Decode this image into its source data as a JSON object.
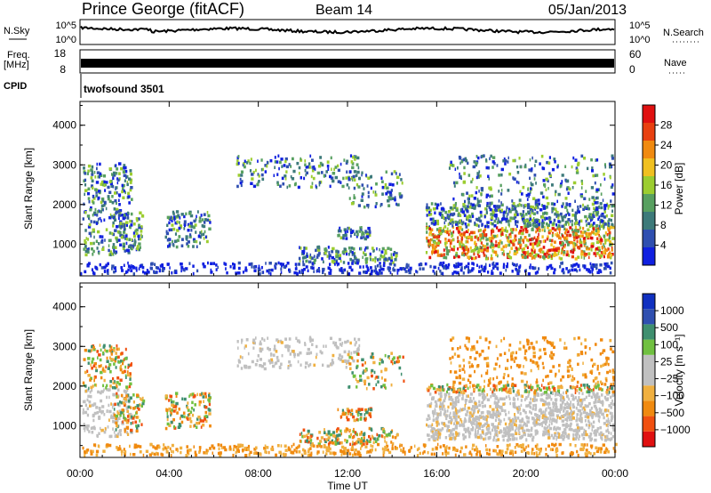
{
  "header": {
    "station": "Prince George (fitACF)",
    "beam": "Beam 14",
    "date": "05/Jan/2013"
  },
  "status_panels": {
    "nsky": {
      "label": "N.Sky",
      "tick_top": "10^5",
      "tick_bottom": "10^0"
    },
    "nsearch": {
      "label": "N.Search",
      "tick_top": "10^5",
      "tick_bottom": "10^0",
      "line_style": "dotted"
    },
    "freq": {
      "label_line1": "Freq.",
      "label_line2": "[MHz]",
      "tick_top": "18",
      "tick_bottom": "8",
      "line_style": "solid"
    },
    "nave": {
      "label": "Nave",
      "tick_top": "60",
      "tick_bottom": "0",
      "line_style": "dotted"
    },
    "cpid": {
      "label": "CPID",
      "value": "twofsound 3501"
    }
  },
  "colors": {
    "power_scale": [
      "#1020e0",
      "#2f4fb0",
      "#3d7a7a",
      "#58a060",
      "#9ccd30",
      "#f0c020",
      "#f08a10",
      "#e84010",
      "#e01010"
    ],
    "velocity_scale": [
      "#e01010",
      "#f05010",
      "#f08a10",
      "#f0b040",
      "#c0c0c0",
      "#c0c0c0",
      "#70c040",
      "#3f8f6f",
      "#2f4fb0",
      "#1030c0"
    ]
  },
  "chart_data": [
    {
      "type": "heatmap",
      "name": "power",
      "ylabel": "Slant Range [km]",
      "y_ticks": [
        "1000",
        "2000",
        "3000",
        "4000"
      ],
      "ylim": [
        200,
        4600
      ],
      "colorbar": {
        "label": "Power [dB]",
        "ticks": [
          "4",
          "8",
          "12",
          "16",
          "20",
          "24",
          "28"
        ],
        "range": [
          0,
          32
        ]
      },
      "x_ticks": [
        "00:00",
        "04:00",
        "08:00",
        "12:00",
        "16:00",
        "20:00",
        "00:00"
      ],
      "xlim_hours": [
        0,
        24
      ]
    },
    {
      "type": "heatmap",
      "name": "velocity",
      "ylabel": "Slant Range [km]",
      "y_ticks": [
        "1000",
        "2000",
        "3000",
        "4000"
      ],
      "ylim": [
        200,
        4600
      ],
      "colorbar": {
        "label": "Velocity [m s⁻¹]",
        "ticks": [
          "1000",
          "500",
          "100",
          "25",
          "−25",
          "−100",
          "−500",
          "−1000"
        ]
      },
      "x_ticks": [
        "00:00",
        "04:00",
        "08:00",
        "12:00",
        "16:00",
        "20:00",
        "00:00"
      ],
      "xlim_hours": [
        0,
        24
      ],
      "xlabel": "Time UT"
    }
  ]
}
